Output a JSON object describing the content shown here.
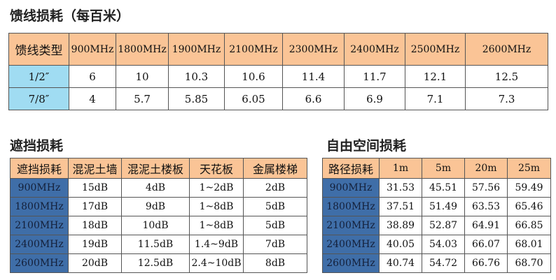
{
  "feeder": {
    "title": "馈线损耗（每百米）",
    "headers": [
      "馈线类型",
      "900MHz",
      "1800MHz",
      "1900MHz",
      "2100MHz",
      "2300MHz",
      "2400MHz",
      "2500MHz",
      "2600MHz"
    ],
    "rows": [
      [
        "1/2″",
        "6",
        "10",
        "10.3",
        "10.6",
        "11.4",
        "11.7",
        "12.1",
        "12.5"
      ],
      [
        "7/8″",
        "4",
        "5.7",
        "5.85",
        "6.05",
        "6.6",
        "6.9",
        "7.1",
        "7.3"
      ]
    ]
  },
  "block": {
    "title": "遮挡损耗",
    "headers": [
      "遮挡损耗",
      "混泥土墙",
      "混泥土楼板",
      "天花板",
      "金属楼梯"
    ],
    "rows": [
      [
        "900MHz",
        "15dB",
        "4dB",
        "1~2dB",
        "2dB"
      ],
      [
        "1800MHz",
        "17dB",
        "9dB",
        "1~8dB",
        "5dB"
      ],
      [
        "2100MHz",
        "18dB",
        "10dB",
        "1~8dB",
        "5dB"
      ],
      [
        "2400MHz",
        "19dB",
        "11.5dB",
        "1.4~9dB",
        "7dB"
      ],
      [
        "2600MHz",
        "20dB",
        "12.5dB",
        "2.4~10dB",
        "8dB"
      ]
    ]
  },
  "free": {
    "title": "自由空间损耗",
    "headers": [
      "路径损耗",
      "1m",
      "5m",
      "20m",
      "25m"
    ],
    "rows": [
      [
        "900MHz",
        "31.53",
        "45.51",
        "57.56",
        "59.49"
      ],
      [
        "1800MHz",
        "37.51",
        "51.49",
        "63.53",
        "65.46"
      ],
      [
        "2100MHz",
        "38.89",
        "52.87",
        "64.91",
        "66.85"
      ],
      [
        "2400MHz",
        "40.05",
        "54.03",
        "66.07",
        "68.01"
      ],
      [
        "2600MHz",
        "40.74",
        "54.72",
        "66.76",
        "68.70"
      ]
    ]
  },
  "colors": {
    "header": "#FAC496",
    "light_blue": "#A0DCF2",
    "dark_blue": "#3F6EA8"
  }
}
